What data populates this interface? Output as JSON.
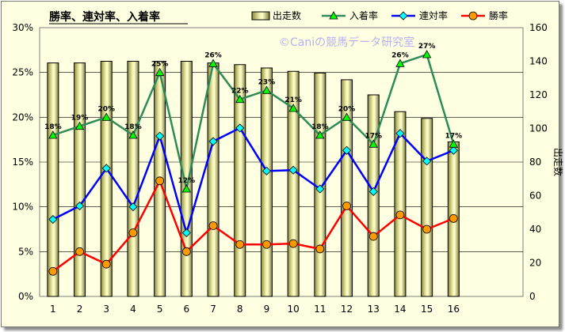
{
  "chart_data": {
    "type": "bar+line",
    "title": "勝率、連対率、入着率",
    "watermark": "©Caniの競馬データ研究室",
    "categories": [
      "1",
      "2",
      "3",
      "4",
      "5",
      "6",
      "7",
      "8",
      "9",
      "10",
      "11",
      "12",
      "13",
      "14",
      "15",
      "16"
    ],
    "bar_series": {
      "name": "出走数",
      "axis": "right",
      "color": "#eeee99",
      "values": [
        139,
        139,
        140,
        140,
        140,
        140,
        139,
        138,
        136,
        134,
        133,
        129,
        120,
        110,
        106,
        92
      ]
    },
    "series": [
      {
        "name": "入着率",
        "axis": "left",
        "color": "#2e8b57",
        "marker": "triangle",
        "marker_color": "#00ff00",
        "values": [
          18,
          19,
          20,
          18,
          25,
          12,
          26,
          22,
          23,
          21,
          18,
          20,
          17,
          26,
          27,
          17
        ],
        "labels": [
          "18%",
          "19%",
          "20%",
          "18%",
          "25%",
          "12%",
          "26%",
          "22%",
          "23%",
          "21%",
          "18%",
          "20%",
          "17%",
          "26%",
          "27%",
          "17%"
        ]
      },
      {
        "name": "連対率",
        "axis": "left",
        "color": "#0000ff",
        "marker": "diamond",
        "marker_color": "#00ffff",
        "values": [
          8.6,
          10.1,
          14.3,
          10.0,
          17.9,
          7.1,
          17.3,
          18.8,
          14.0,
          14.1,
          12.0,
          16.3,
          11.7,
          18.2,
          15.1,
          16.3
        ]
      },
      {
        "name": "勝率",
        "axis": "left",
        "color": "#ff0000",
        "marker": "circle",
        "marker_color": "#ff9900",
        "values": [
          2.8,
          5.0,
          3.6,
          7.1,
          12.9,
          5.0,
          7.9,
          5.8,
          5.8,
          5.9,
          5.3,
          10.1,
          6.7,
          9.1,
          7.5,
          8.7
        ]
      }
    ],
    "left_axis": {
      "min": 0,
      "max": 30,
      "step": 5,
      "tick_labels": [
        "0%",
        "5%",
        "10%",
        "15%",
        "20%",
        "25%",
        "30%"
      ]
    },
    "right_axis": {
      "min": 0,
      "max": 160,
      "step": 20,
      "label": "出走数",
      "tick_labels": [
        "0",
        "20",
        "40",
        "60",
        "80",
        "100",
        "120",
        "140",
        "160"
      ]
    },
    "grid": true,
    "legend_position": "top"
  }
}
